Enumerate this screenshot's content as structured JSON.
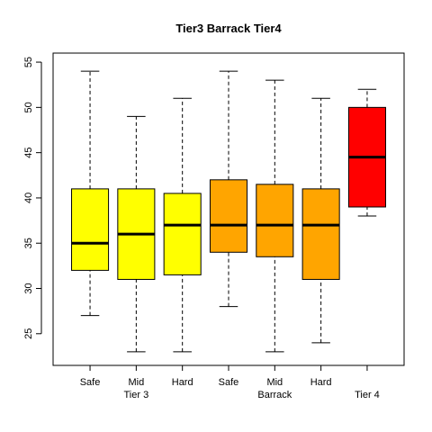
{
  "chart_data": {
    "type": "boxplot",
    "title": "Tier3 Barrack Tier4",
    "xlabel": "",
    "ylabel": "",
    "ylim": [
      21.5,
      56
    ],
    "yticks": [
      25,
      30,
      35,
      40,
      45,
      50,
      55
    ],
    "grid": false,
    "categories": [
      "Safe",
      "Mid",
      "Hard",
      "Safe",
      "Mid",
      "Hard",
      ""
    ],
    "group_labels": [
      {
        "label": "Tier 3",
        "category_index": 1
      },
      {
        "label": "Barrack",
        "category_index": 4
      },
      {
        "label": "Tier 4",
        "category_index": 6
      }
    ],
    "boxes": [
      {
        "min": 27,
        "q1": 32,
        "median": 35,
        "q3": 41,
        "max": 54,
        "color": "#FFFF00"
      },
      {
        "min": 23,
        "q1": 31,
        "median": 36,
        "q3": 41,
        "max": 49,
        "color": "#FFFF00"
      },
      {
        "min": 23,
        "q1": 31.5,
        "median": 37,
        "q3": 40.5,
        "max": 51,
        "color": "#FFFF00"
      },
      {
        "min": 28,
        "q1": 34,
        "median": 37,
        "q3": 42,
        "max": 54,
        "color": "#FFA500"
      },
      {
        "min": 23,
        "q1": 33.5,
        "median": 37,
        "q3": 41.5,
        "max": 53,
        "color": "#FFA500"
      },
      {
        "min": 24,
        "q1": 31,
        "median": 37,
        "q3": 41,
        "max": 51,
        "color": "#FFA500"
      },
      {
        "min": 38,
        "q1": 39,
        "median": 44.5,
        "q3": 50,
        "max": 52,
        "color": "#FF0000"
      }
    ]
  }
}
